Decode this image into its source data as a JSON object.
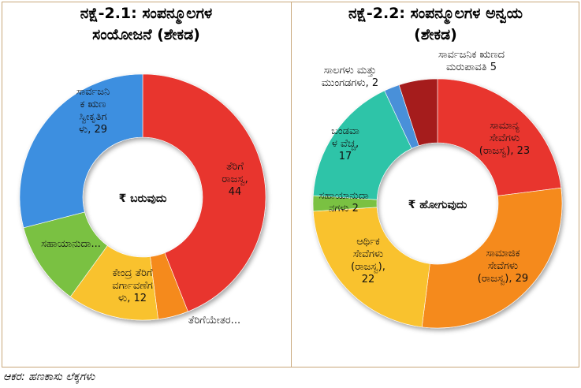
{
  "source": "ಆಕರ: ಹಣಕಾಸು ಲೆಕ್ಕಗಳು",
  "chart_data": [
    {
      "type": "pie",
      "title_line1": "ನಕ್ಷೆ-2.1: ಸಂಪನ್ಮೂಲಗಳ",
      "title_line2": "ಸಂಯೋಜನೆ (ಶೇಕಡ)",
      "center_label": "₹ ಬರುವುದು",
      "slices": [
        {
          "name": "ತೆರಿಗೆ ರಾಜಸ್ವ",
          "value": 44,
          "label_lines": [
            "ತೆರಿಗೆ",
            "ರಾಜಸ್ವ,",
            "44"
          ],
          "color": "#e8352f"
        },
        {
          "name": "ತೆರಿಗೆಯೇತರ...",
          "value": 4,
          "label_lines": [
            "ತೆರಿಗೆಯೇತರ..."
          ],
          "color": "#f58a1f"
        },
        {
          "name": "ಕೇಂದ್ರ ತೆರಿಗೆ ವರ್ಗಾವಣೆಗಳು",
          "value": 12,
          "label_lines": [
            "ಕೇಂದ್ರ ತೆರಿಗೆ",
            "ವರ್ಗಾವಣೆಗ",
            "ಳು, 12"
          ],
          "color": "#f9c22e"
        },
        {
          "name": "ಸಹಾಯಾನುದಾ...",
          "value": 11,
          "label_lines": [
            "ಸಹಾಯಾನುದಾ..."
          ],
          "color": "#7ac143"
        },
        {
          "name": "ಸಾರ್ವಜನಿಕ ಋಣ ಸ್ವೀಕೃತಿಗಳು",
          "value": 29,
          "label_lines": [
            "ಸಾರ್ವಜನಿ",
            "ಕ ಋಣ",
            "ಸ್ವೀಕೃತಿಗ",
            "ಳು, 29"
          ],
          "color": "#3d8fe0"
        }
      ]
    },
    {
      "type": "pie",
      "title_line1": "ನಕ್ಷೆ-2.2: ಸಂಪನ್ಮೂಲಗಳ ಅನ್ವಯ",
      "title_line2": "(ಶೇಕಡ)",
      "center_label": "₹ ಹೋಗುವುದು",
      "slices": [
        {
          "name": "ಸಾಮಾನ್ಯ ಸೇವೆಗಳು (ರಾಜಸ್ವ)",
          "value": 23,
          "label_lines": [
            "ಸಾಮಾನ್ಯ",
            "ಸೇವೆಗಳು",
            "(ರಾಜಸ್ವ), 23"
          ],
          "color": "#e8352f"
        },
        {
          "name": "ಸಾಮಾಜಿಕ ಸೇವೆಗಳು (ರಾಜಸ್ವ)",
          "value": 29,
          "label_lines": [
            "ಸಾಮಾಜಿಕ",
            "ಸೇವೆಗಳು",
            "(ರಾಜಸ್ವ), 29"
          ],
          "color": "#f58a1f"
        },
        {
          "name": "ಆರ್ಥಿಕ ಸೇವೆಗಳು (ರಾಜಸ್ವ)",
          "value": 22,
          "label_lines": [
            "ಆರ್ಥಿಕ",
            "ಸೇವೆಗಳು",
            "(ರಾಜಸ್ವ),",
            "22"
          ],
          "color": "#f9c22e"
        },
        {
          "name": "ಸಹಾಯಾನುದಾನಗಳು",
          "value": 2,
          "label_lines": [
            "ಸಹಾಯಾನುದಾ",
            "ನಗಳು 2"
          ],
          "color": "#7ac143"
        },
        {
          "name": "ಬಂಡವಾಳ ವೆಚ್ಚ",
          "value": 17,
          "label_lines": [
            "ಬಂಡವಾ",
            "ಳ ವೆಚ್ಚ,",
            "17"
          ],
          "color": "#2fc4a8"
        },
        {
          "name": "ಸಾಲಗಳು ಮತ್ತು ಮುಂಗಡಗಳು",
          "value": 2,
          "label_lines": [
            "ಸಾಲಗಳು ಮತ್ತು",
            "ಮುಂಗಡಗಳು, 2"
          ],
          "color": "#4a90d9"
        },
        {
          "name": "ಸಾರ್ವಜನಿಕ ಋಣದ ಮರುಪಾವತಿ",
          "value": 5,
          "label_lines": [
            "ಸಾರ್ವಜನಿಕ ಋಣದ",
            "ಮರುಪಾವತಿ 5"
          ],
          "color": "#a51c1c"
        }
      ]
    }
  ]
}
